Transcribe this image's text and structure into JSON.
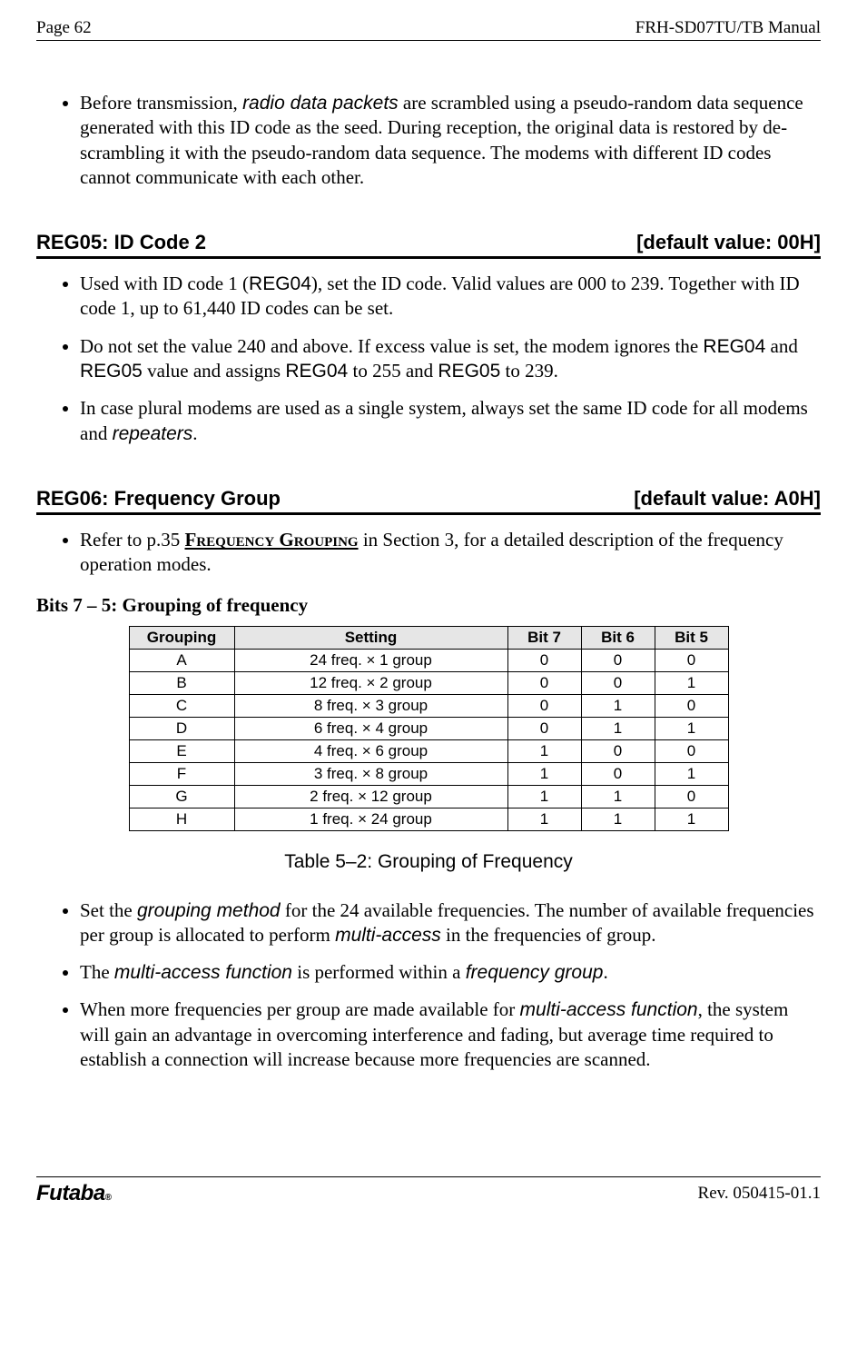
{
  "header": {
    "page_label": "Page  62",
    "manual_title": "FRH-SD07TU/TB Manual"
  },
  "intro_bullet": {
    "pre": "Before transmission, ",
    "italic": "radio data packets",
    "post": " are scrambled using a pseudo-random data sequence generated with this ID code as the seed. During reception, the original data is restored by de-scrambling it with the pseudo-random data sequence. The modems with different ID codes cannot communicate with each other."
  },
  "reg05": {
    "title_left": "REG05:  ID Code 2",
    "title_right": "[default value: 00H]",
    "bullets": {
      "b1": {
        "a": "Used with ID code 1 (",
        "r1": "REG04",
        "b": "), set the ID code. Valid values are 000 to 239. Together with ID code 1, up to 61,440 ID codes can be set."
      },
      "b2": {
        "a": "Do not set the value 240 and above. If excess value is set, the modem ignores the ",
        "r1": "REG04",
        "b": " and ",
        "r2": "REG05",
        "c": " value and assigns ",
        "r3": "REG04",
        "d": " to 255 and ",
        "r4": "REG05",
        "e": " to 239."
      },
      "b3": {
        "a": "In case plural modems are used as a single system, always set the same ID code for all modems and ",
        "i": "repeaters",
        "b": "."
      }
    }
  },
  "reg06": {
    "title_left": "REG06:  Frequency Group",
    "title_right": "[default value: A0H]",
    "b1": {
      "a": "Refer to p.35 ",
      "link": "Frequency Grouping",
      "b": " in Section 3, for a detailed description of the frequency operation modes."
    },
    "bits_label": "Bits 7 – 5:  Grouping of frequency",
    "table": {
      "headers": {
        "grouping": "Grouping",
        "setting": "Setting",
        "b7": "Bit 7",
        "b6": "Bit 6",
        "b5": "Bit 5"
      },
      "rows": [
        {
          "g": "A",
          "s": "24 freq. ×  1 group",
          "b7": "0",
          "b6": "0",
          "b5": "0"
        },
        {
          "g": "B",
          "s": "12 freq. ×  2 group",
          "b7": "0",
          "b6": "0",
          "b5": "1"
        },
        {
          "g": "C",
          "s": "8 freq. ×  3 group",
          "b7": "0",
          "b6": "1",
          "b5": "0"
        },
        {
          "g": "D",
          "s": "6 freq. ×  4 group",
          "b7": "0",
          "b6": "1",
          "b5": "1"
        },
        {
          "g": "E",
          "s": "4 freq. ×  6 group",
          "b7": "1",
          "b6": "0",
          "b5": "0"
        },
        {
          "g": "F",
          "s": "3 freq. ×  8 group",
          "b7": "1",
          "b6": "0",
          "b5": "1"
        },
        {
          "g": "G",
          "s": "2 freq. × 12 group",
          "b7": "1",
          "b6": "1",
          "b5": "0"
        },
        {
          "g": "H",
          "s": "1 freq. × 24 group",
          "b7": "1",
          "b6": "1",
          "b5": "1"
        }
      ]
    },
    "caption": "Table 5–2:  Grouping of Frequency",
    "post_bullets": {
      "p1": {
        "a": "Set the ",
        "i1": "grouping method",
        "b": " for the 24 available frequencies. The number of available frequencies per group is allocated to perform ",
        "i2": "multi-access",
        "c": " in the frequencies of group."
      },
      "p2": {
        "a": "The ",
        "i1": "multi-access function",
        "b": " is performed within a ",
        "i2": "frequency group",
        "c": "."
      },
      "p3": {
        "a": "When more frequencies per group are made available for ",
        "i1": "multi-access function",
        "b": ", the system will gain an advantage in overcoming interference and fading, but average time required to establish a connection will increase because more frequencies are scanned."
      }
    }
  },
  "footer": {
    "logo": "Futaba",
    "rev": "Rev. 050415-01.1"
  }
}
